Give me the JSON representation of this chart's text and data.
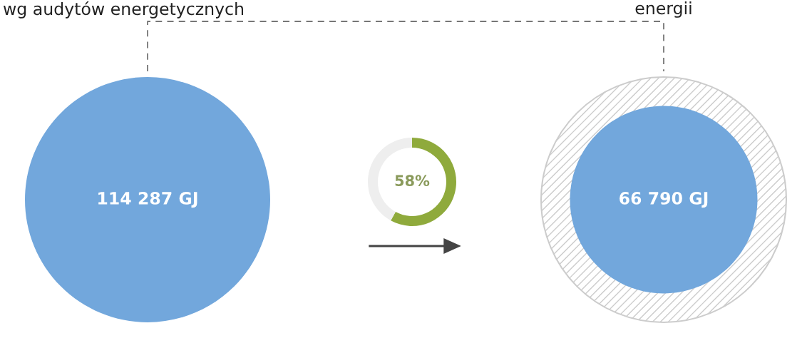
{
  "chart_data": [
    {
      "type": "other",
      "categories": [
        null,
        null
      ],
      "values": [
        114287,
        66790
      ],
      "value_labels": [
        "114 287 GJ",
        "66 790 GJ"
      ],
      "colors": [
        "#72a7dc",
        "#72a7dc"
      ],
      "annotations": [
        "wg audytów energetycznych",
        "energii"
      ]
    },
    {
      "type": "donut",
      "categories": [
        null,
        null
      ],
      "values": [
        58,
        42
      ],
      "colors": [
        "#8faa3c",
        "#eeeeee"
      ],
      "value_labels": [
        "58%",
        null
      ]
    }
  ]
}
